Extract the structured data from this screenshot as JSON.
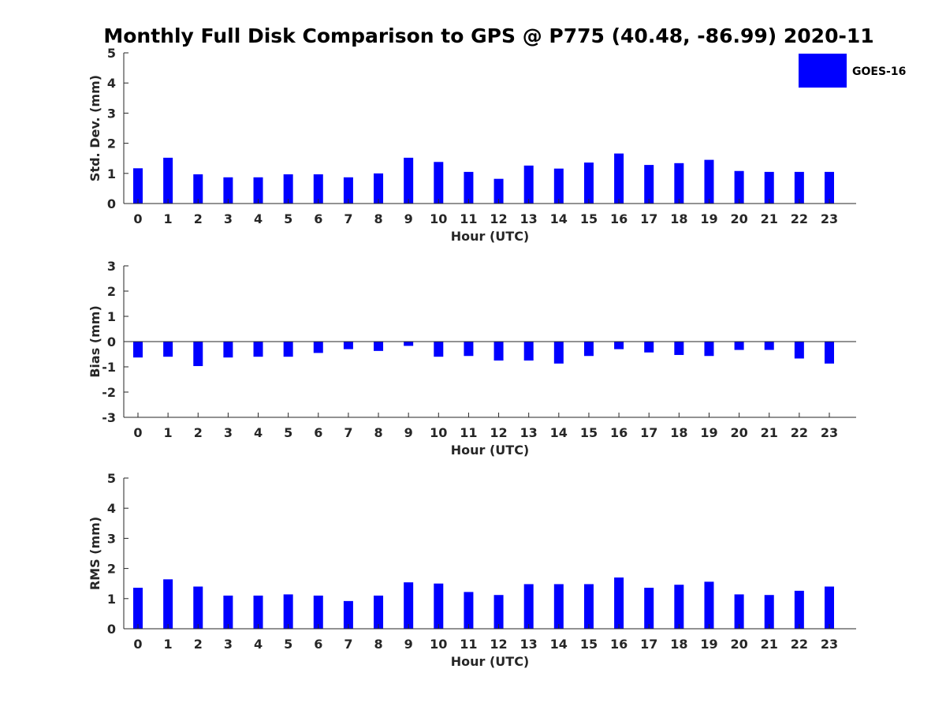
{
  "chart_data": {
    "title": "Monthly Full Disk Comparison to GPS @ P775 (40.48, -86.99) 2020-11",
    "legend": {
      "entries": [
        "GOES-16"
      ],
      "placement": "top-right"
    },
    "colors": {
      "bar": "#0000ff",
      "axis": "#262626"
    },
    "panels": [
      {
        "type": "bar",
        "xlabel": "Hour (UTC)",
        "ylabel": "Std. Dev. (mm)",
        "ylim": [
          0,
          5
        ],
        "yticks": [
          0,
          1,
          2,
          3,
          4,
          5
        ],
        "grid": false,
        "categories": [
          "0",
          "1",
          "2",
          "3",
          "4",
          "5",
          "6",
          "7",
          "8",
          "9",
          "10",
          "11",
          "12",
          "13",
          "14",
          "15",
          "16",
          "17",
          "18",
          "19",
          "20",
          "21",
          "22",
          "23"
        ],
        "series": [
          {
            "name": "GOES-16",
            "values": [
              1.17,
              1.52,
              0.97,
              0.87,
              0.87,
              0.97,
              0.97,
              0.87,
              1.0,
              1.52,
              1.38,
              1.05,
              0.82,
              1.26,
              1.16,
              1.36,
              1.66,
              1.28,
              1.34,
              1.45,
              1.08,
              1.05,
              1.05,
              1.05
            ]
          }
        ]
      },
      {
        "type": "bar",
        "xlabel": "Hour (UTC)",
        "ylabel": "Bias (mm)",
        "ylim": [
          -3,
          3
        ],
        "yticks": [
          -3,
          -2,
          -1,
          0,
          1,
          2,
          3
        ],
        "grid": false,
        "categories": [
          "0",
          "1",
          "2",
          "3",
          "4",
          "5",
          "6",
          "7",
          "8",
          "9",
          "10",
          "11",
          "12",
          "13",
          "14",
          "15",
          "16",
          "17",
          "18",
          "19",
          "20",
          "21",
          "22",
          "23"
        ],
        "series": [
          {
            "name": "GOES-16",
            "values": [
              -0.63,
              -0.6,
              -0.97,
              -0.63,
              -0.6,
              -0.6,
              -0.45,
              -0.3,
              -0.37,
              -0.17,
              -0.6,
              -0.57,
              -0.75,
              -0.75,
              -0.87,
              -0.57,
              -0.3,
              -0.43,
              -0.53,
              -0.57,
              -0.33,
              -0.33,
              -0.67,
              -0.87
            ]
          }
        ]
      },
      {
        "type": "bar",
        "xlabel": "Hour (UTC)",
        "ylabel": "RMS (mm)",
        "ylim": [
          0,
          5
        ],
        "yticks": [
          0,
          1,
          2,
          3,
          4,
          5
        ],
        "grid": false,
        "categories": [
          "0",
          "1",
          "2",
          "3",
          "4",
          "5",
          "6",
          "7",
          "8",
          "9",
          "10",
          "11",
          "12",
          "13",
          "14",
          "15",
          "16",
          "17",
          "18",
          "19",
          "20",
          "21",
          "22",
          "23"
        ],
        "series": [
          {
            "name": "GOES-16",
            "values": [
              1.36,
              1.64,
              1.4,
              1.1,
              1.1,
              1.14,
              1.1,
              0.92,
              1.1,
              1.54,
              1.5,
              1.22,
              1.12,
              1.48,
              1.48,
              1.48,
              1.7,
              1.36,
              1.46,
              1.56,
              1.14,
              1.12,
              1.26,
              1.4
            ]
          }
        ]
      }
    ]
  }
}
